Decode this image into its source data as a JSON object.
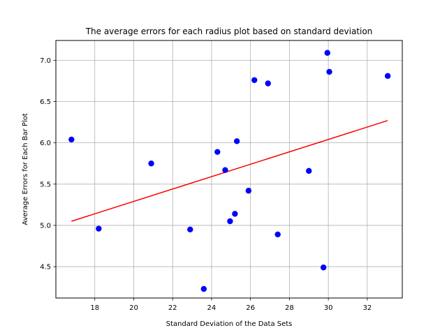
{
  "chart_data": {
    "type": "scatter",
    "title": "The average errors for each radius plot based on standard deviation",
    "xlabel": "Standard Deviation of the Data Sets",
    "ylabel": "Average Errors for Each Bar Plot",
    "xlim": [
      16.0,
      33.8
    ],
    "ylim": [
      4.12,
      7.24
    ],
    "xticks": [
      18,
      20,
      22,
      24,
      26,
      28,
      30,
      32
    ],
    "yticks": [
      4.5,
      5.0,
      5.5,
      6.0,
      6.5,
      7.0
    ],
    "grid": true,
    "point_color": "#0000ff",
    "line_color": "#ff0000",
    "points": [
      {
        "x": 16.8,
        "y": 6.04
      },
      {
        "x": 18.2,
        "y": 4.96
      },
      {
        "x": 20.9,
        "y": 5.75
      },
      {
        "x": 22.9,
        "y": 4.95
      },
      {
        "x": 23.6,
        "y": 4.23
      },
      {
        "x": 24.3,
        "y": 5.89
      },
      {
        "x": 24.7,
        "y": 5.67
      },
      {
        "x": 24.95,
        "y": 5.05
      },
      {
        "x": 25.2,
        "y": 5.14
      },
      {
        "x": 25.3,
        "y": 6.02
      },
      {
        "x": 25.9,
        "y": 5.42
      },
      {
        "x": 26.2,
        "y": 6.76
      },
      {
        "x": 26.9,
        "y": 6.72
      },
      {
        "x": 27.4,
        "y": 4.89
      },
      {
        "x": 29.0,
        "y": 5.66
      },
      {
        "x": 29.75,
        "y": 4.49
      },
      {
        "x": 29.95,
        "y": 7.09
      },
      {
        "x": 30.05,
        "y": 6.86
      },
      {
        "x": 33.05,
        "y": 6.81
      }
    ],
    "trend_line": {
      "x": [
        16.8,
        33.05
      ],
      "y": [
        5.05,
        6.27
      ]
    }
  }
}
